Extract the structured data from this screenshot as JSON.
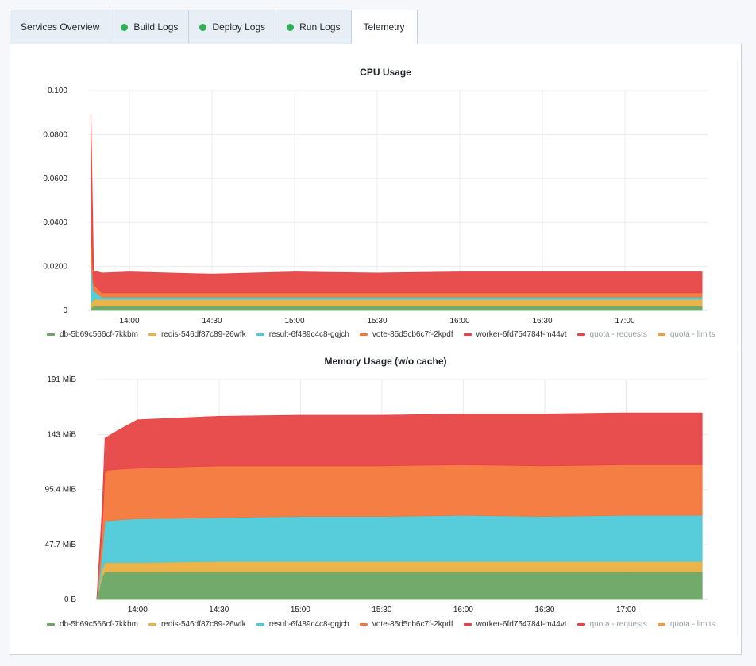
{
  "tabs": [
    {
      "label": "Services Overview",
      "status": null,
      "active": false
    },
    {
      "label": "Build Logs",
      "status": "ok",
      "active": false
    },
    {
      "label": "Deploy Logs",
      "status": "ok",
      "active": false
    },
    {
      "label": "Run Logs",
      "status": "ok",
      "active": false
    },
    {
      "label": "Telemetry",
      "status": null,
      "active": true
    }
  ],
  "colors": {
    "db": "#6aa564",
    "redis": "#e9b041",
    "result": "#4ec9d8",
    "vote": "#f4773b",
    "worker": "#e84444",
    "quota_requests": "#e84444",
    "quota_limits": "#f29a3d",
    "status_ok": "#2fb153"
  },
  "legend": [
    {
      "label": "db-5b69c566cf-7kkbm",
      "color": "#6aa564",
      "dim": false
    },
    {
      "label": "redis-546df87c89-26wfk",
      "color": "#e9b041",
      "dim": false
    },
    {
      "label": "result-6f489c4c8-gqjch",
      "color": "#4ec9d8",
      "dim": false
    },
    {
      "label": "vote-85d5cb6c7f-2kpdf",
      "color": "#f4773b",
      "dim": false
    },
    {
      "label": "worker-6fd754784f-m44vt",
      "color": "#e84444",
      "dim": false
    },
    {
      "label": "quota - requests",
      "color": "#e84444",
      "dim": true
    },
    {
      "label": "quota - limits",
      "color": "#f29a3d",
      "dim": true
    }
  ],
  "chart_data": [
    {
      "type": "area",
      "stacked": true,
      "title": "CPU Usage",
      "xlabel": "",
      "ylabel": "",
      "ylim": [
        0,
        0.1
      ],
      "y_tick_values": [
        0,
        0.02,
        0.04,
        0.06,
        0.08,
        0.1
      ],
      "y_tick_labels": [
        "0",
        "0.0200",
        "0.0400",
        "0.0600",
        "0.0800",
        "0.100"
      ],
      "x_range": [
        "13:45",
        "17:30"
      ],
      "x_ticks": [
        "14:00",
        "14:30",
        "15:00",
        "15:30",
        "16:00",
        "16:30",
        "17:00"
      ],
      "grid": true,
      "legend_position": "bottom",
      "x": [
        "13:46",
        "13:47",
        "13:50",
        "14:00",
        "14:30",
        "15:00",
        "15:30",
        "16:00",
        "16:30",
        "17:00",
        "17:28"
      ],
      "series": [
        {
          "name": "db-5b69c566cf-7kkbm",
          "values": [
            0.001,
            0.002,
            0.002,
            0.002,
            0.002,
            0.002,
            0.002,
            0.002,
            0.002,
            0.002,
            0.002
          ]
        },
        {
          "name": "redis-546df87c89-26wfk",
          "values": [
            0.002,
            0.003,
            0.003,
            0.003,
            0.003,
            0.003,
            0.003,
            0.003,
            0.003,
            0.003,
            0.003
          ]
        },
        {
          "name": "result-6f489c4c8-gqjch",
          "values": [
            0.018,
            0.004,
            0.001,
            0.001,
            0.001,
            0.001,
            0.001,
            0.001,
            0.001,
            0.001,
            0.001
          ]
        },
        {
          "name": "vote-85d5cb6c7f-2kpdf",
          "values": [
            0.016,
            0.003,
            0.002,
            0.002,
            0.002,
            0.002,
            0.002,
            0.002,
            0.002,
            0.002,
            0.002
          ]
        },
        {
          "name": "worker-6fd754784f-m44vt",
          "values": [
            0.052,
            0.006,
            0.009,
            0.0095,
            0.0085,
            0.0095,
            0.009,
            0.0095,
            0.0095,
            0.0095,
            0.0095
          ]
        }
      ]
    },
    {
      "type": "area",
      "stacked": true,
      "title": "Memory Usage (w/o cache)",
      "xlabel": "",
      "ylabel": "",
      "ylim": [
        0,
        191
      ],
      "y_unit": "MiB",
      "y_tick_values": [
        0,
        47.7,
        95.4,
        143,
        191
      ],
      "y_tick_labels": [
        "0 B",
        "47.7 MiB",
        "95.4 MiB",
        "143 MiB",
        "191 MiB"
      ],
      "x_range": [
        "13:45",
        "17:30"
      ],
      "x_ticks": [
        "14:00",
        "14:30",
        "15:00",
        "15:30",
        "16:00",
        "16:30",
        "17:00"
      ],
      "grid": true,
      "legend_position": "bottom",
      "x": [
        "13:45",
        "13:47",
        "13:48",
        "13:53",
        "14:00",
        "14:30",
        "15:00",
        "15:30",
        "16:00",
        "16:30",
        "17:00",
        "17:28"
      ],
      "series": [
        {
          "name": "db-5b69c566cf-7kkbm",
          "values": [
            0,
            20,
            24,
            24,
            24,
            24,
            24,
            24,
            24,
            24,
            24,
            24
          ]
        },
        {
          "name": "redis-546df87c89-26wfk",
          "values": [
            0,
            6,
            8,
            8,
            8,
            9,
            9,
            9,
            9,
            9,
            9,
            9
          ]
        },
        {
          "name": "result-6f489c4c8-gqjch",
          "values": [
            0,
            16,
            36,
            37,
            38,
            38,
            39,
            39,
            40,
            39,
            40,
            40
          ]
        },
        {
          "name": "vote-85d5cb6c7f-2kpdf",
          "values": [
            0,
            20,
            44,
            44,
            44,
            45,
            44,
            44,
            44,
            44,
            44,
            44
          ]
        },
        {
          "name": "worker-6fd754784f-m44vt",
          "values": [
            0,
            18,
            28,
            34,
            42,
            43,
            44,
            44,
            44,
            45,
            45,
            45
          ]
        }
      ]
    }
  ]
}
